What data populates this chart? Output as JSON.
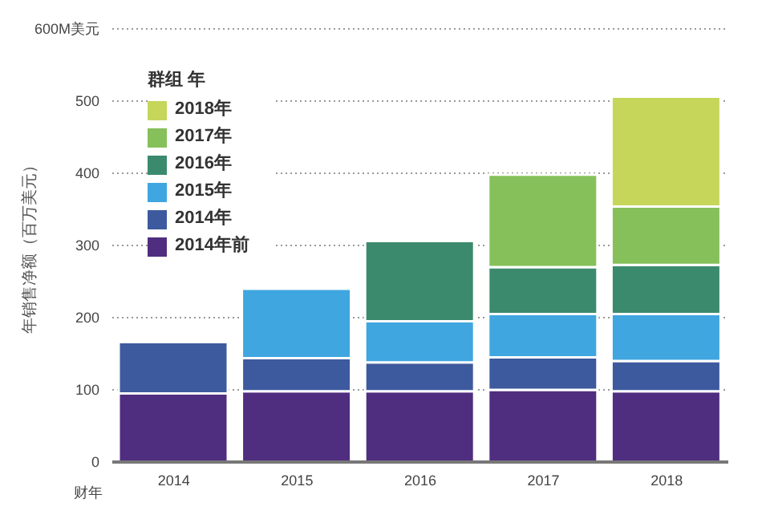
{
  "chart_data": {
    "type": "bar",
    "stacked": true,
    "xlabel": "财年",
    "ylabel": "年销售净额（百万美元）",
    "legend_title": "群组 年",
    "legend": "top left",
    "grid": "y",
    "categories": [
      "2014",
      "2015",
      "2016",
      "2017",
      "2018"
    ],
    "series": [
      {
        "name": "2014年前",
        "color": "#4f2d7f",
        "values": [
          95,
          98,
          98,
          100,
          98
        ]
      },
      {
        "name": "2014年",
        "color": "#3d5a9e",
        "values": [
          71,
          46,
          40,
          45,
          42
        ]
      },
      {
        "name": "2015年",
        "color": "#3fa6e0",
        "values": [
          null,
          96,
          57,
          60,
          65
        ]
      },
      {
        "name": "2016年",
        "color": "#3b8a6e",
        "values": [
          null,
          null,
          111,
          65,
          68
        ]
      },
      {
        "name": "2017年",
        "color": "#86c05a",
        "values": [
          null,
          null,
          null,
          128,
          81
        ]
      },
      {
        "name": "2018年",
        "color": "#c5d65a",
        "values": [
          null,
          null,
          null,
          null,
          152
        ]
      }
    ],
    "ylim": [
      0,
      600
    ],
    "yticks": [
      0,
      100,
      200,
      300,
      400,
      500,
      {
        "value": 600,
        "label": "600M美元"
      }
    ]
  }
}
